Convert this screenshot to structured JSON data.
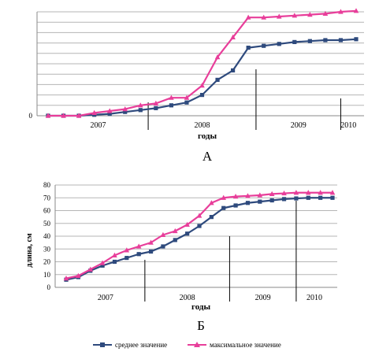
{
  "figure": {
    "colors": {
      "mean": "#2e4a7d",
      "max": "#e83e9a",
      "grid": "#b5b5b5",
      "axis": "#8a8a8a"
    },
    "legend": {
      "mean_label": "среднее значение",
      "max_label": "максимальное значение"
    }
  },
  "chart_data": [
    {
      "panel_label": "А",
      "type": "line",
      "xlabel": "годы",
      "ylabel": "",
      "ylim": [
        0,
        110
      ],
      "yticks": [
        0
      ],
      "grid": true,
      "year_labels": [
        "2007",
        "2008",
        "2009",
        "2010"
      ],
      "x": [
        0,
        1,
        2,
        3,
        4,
        5,
        6,
        7,
        8,
        9,
        10,
        11,
        12,
        13,
        14,
        15,
        16,
        17,
        18,
        19,
        20
      ],
      "year_dividers": [
        6.5,
        13.5,
        19
      ],
      "series": [
        {
          "name": "среднее значение",
          "marker": "square",
          "values": [
            0,
            0,
            0,
            1,
            2,
            4,
            6,
            8,
            11,
            14,
            22,
            38,
            48,
            72,
            74,
            76,
            78,
            79,
            80,
            80,
            81
          ]
        },
        {
          "name": "максимальное значение",
          "marker": "triangle",
          "values": [
            0,
            0,
            0,
            3,
            5,
            7,
            11,
            13,
            19,
            19,
            32,
            62,
            83,
            104,
            104,
            105,
            106,
            107,
            108,
            110,
            111
          ]
        }
      ]
    },
    {
      "panel_label": "Б",
      "type": "line",
      "xlabel": "годы",
      "ylabel": "длина, см",
      "ylim": [
        0,
        80
      ],
      "yticks": [
        0,
        10,
        20,
        30,
        40,
        50,
        60,
        70,
        80
      ],
      "grid": true,
      "year_labels": [
        "2007",
        "2008",
        "2009",
        "2010"
      ],
      "x": [
        0,
        1,
        2,
        3,
        4,
        5,
        6,
        7,
        8,
        9,
        10,
        11,
        12,
        13,
        14,
        15,
        16,
        17,
        18,
        19,
        20,
        21,
        22
      ],
      "year_dividers": [
        6.5,
        13.5,
        19
      ],
      "series": [
        {
          "name": "среднее значение",
          "marker": "square",
          "values": [
            6,
            8,
            13,
            17,
            20,
            23,
            26,
            28,
            32,
            37,
            42,
            48,
            55,
            62,
            64,
            66,
            67,
            68,
            69,
            69.5,
            70,
            70,
            70
          ]
        },
        {
          "name": "максимальное значение",
          "marker": "triangle",
          "values": [
            7,
            9,
            14,
            19,
            25,
            29,
            32,
            35,
            41,
            44,
            49,
            56,
            66,
            70,
            71,
            71.5,
            72,
            73,
            73.5,
            74,
            74,
            74,
            74
          ]
        }
      ]
    }
  ]
}
